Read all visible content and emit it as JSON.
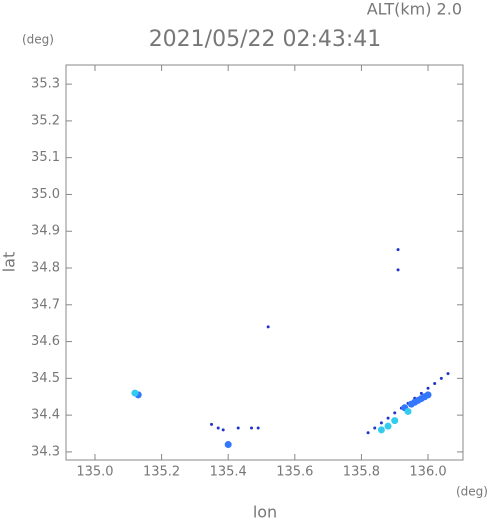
{
  "chart_data": {
    "type": "scatter",
    "title": "2021/05/22 02:43:41",
    "annotation": "ALT(km) 2.0",
    "x_label": "lon",
    "x_unit": "(deg)",
    "y_label": "lat",
    "y_unit": "(deg)",
    "xlim": [
      134.913,
      136.105
    ],
    "ylim": [
      34.278,
      35.352
    ],
    "xticks": [
      {
        "value": 135.0,
        "label": "135.0"
      },
      135.2,
      135.4,
      135.6,
      135.8,
      {
        "value": 136.0,
        "label": "136.0"
      }
    ],
    "yticks": [
      34.3,
      34.4,
      34.5,
      34.6,
      34.7,
      34.8,
      34.9,
      {
        "value": 35.0,
        "label": "35.0"
      },
      35.1,
      35.2,
      35.3
    ],
    "series": [
      {
        "color": "#2233cc",
        "marker_size": 1.5,
        "x": [
          135.82,
          135.84,
          135.86,
          135.88,
          135.9,
          135.92,
          135.94,
          135.96,
          135.98,
          136.0,
          136.02,
          136.04,
          136.06,
          135.35,
          135.37,
          135.385,
          135.43,
          135.47,
          135.49,
          135.52,
          135.91,
          135.91
        ],
        "y": [
          34.352,
          34.365,
          34.379,
          34.392,
          34.406,
          34.419,
          34.432,
          34.446,
          34.459,
          34.473,
          34.486,
          34.5,
          34.513,
          34.375,
          34.365,
          34.36,
          34.365,
          34.365,
          34.365,
          34.64,
          34.85,
          34.795
        ]
      },
      {
        "color": "#3377ff",
        "marker_size": 3.5,
        "x": [
          135.13,
          135.4,
          135.96,
          135.98,
          136.0,
          135.97,
          135.99,
          135.93,
          135.95
        ],
        "y": [
          34.455,
          34.32,
          34.435,
          34.445,
          34.455,
          34.44,
          34.45,
          34.42,
          34.43
        ]
      },
      {
        "color": "#33ccee",
        "marker_size": 3.5,
        "x": [
          135.12,
          135.86,
          135.88,
          135.9,
          135.94
        ],
        "y": [
          34.46,
          34.36,
          34.37,
          34.385,
          34.41
        ]
      }
    ]
  }
}
